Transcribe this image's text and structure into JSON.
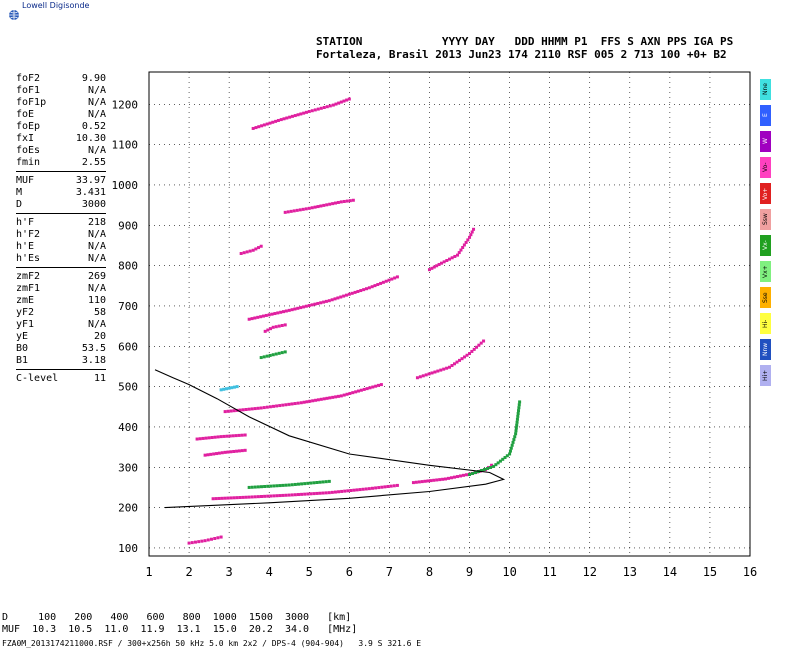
{
  "app": {
    "logo_text": "Lowell Digisonde"
  },
  "header": {
    "line1": "STATION            YYYY DAY   DDD HHMM P1  FFS S AXN PPS IGA PS",
    "line2": "Fortaleza, Brasil 2013 Jun23 174 2110 RSF 005 2 713 100 +0+ B2"
  },
  "params": [
    {
      "k": "foF2",
      "v": "9.90"
    },
    {
      "k": "foF1",
      "v": "N/A"
    },
    {
      "k": "foF1p",
      "v": "N/A"
    },
    {
      "k": "foE",
      "v": "N/A"
    },
    {
      "k": "foEp",
      "v": "0.52"
    },
    {
      "k": "fxI",
      "v": "10.30"
    },
    {
      "k": "foEs",
      "v": "N/A"
    },
    {
      "k": "fmin",
      "v": "2.55"
    },
    {
      "sep": true
    },
    {
      "k": "MUF",
      "v": "33.97"
    },
    {
      "k": "M",
      "v": "3.431"
    },
    {
      "k": "D",
      "v": "3000"
    },
    {
      "sep": true
    },
    {
      "k": "h'F",
      "v": "218"
    },
    {
      "k": "h'F2",
      "v": "N/A"
    },
    {
      "k": "h'E",
      "v": "N/A"
    },
    {
      "k": "h'Es",
      "v": "N/A"
    },
    {
      "sep": true
    },
    {
      "k": "zmF2",
      "v": "269"
    },
    {
      "k": "zmF1",
      "v": "N/A"
    },
    {
      "k": "zmE",
      "v": "110"
    },
    {
      "k": "yF2",
      "v": "58"
    },
    {
      "k": "yF1",
      "v": "N/A"
    },
    {
      "k": "yE",
      "v": "20"
    },
    {
      "k": "B0",
      "v": "53.5"
    },
    {
      "k": "B1",
      "v": "3.18"
    },
    {
      "sep": true
    },
    {
      "k": "C-level",
      "v": "11"
    }
  ],
  "sidebar": [
    {
      "label": "Nne",
      "color": "#40e0e0"
    },
    {
      "label": "E",
      "color": "#3060ff"
    },
    {
      "label": "W",
      "color": "#a000c0"
    },
    {
      "label": "Vo-",
      "color": "#ff40c0"
    },
    {
      "label": "Vo+",
      "color": "#e02020"
    },
    {
      "label": "Ssw",
      "color": "#f0a0a0"
    },
    {
      "label": "Vx-",
      "color": "#20a020"
    },
    {
      "label": "Vx+",
      "color": "#80f080"
    },
    {
      "label": "Sse",
      "color": "#ffb000"
    },
    {
      "label": "Hi-",
      "color": "#ffff40"
    },
    {
      "label": "Nnw",
      "color": "#2050c0"
    },
    {
      "label": "Hi+",
      "color": "#b0b0f0"
    }
  ],
  "footer": {
    "line1": "D     100   200   400   600   800  1000  1500  3000   [km]",
    "line2": "MUF  10.3  10.5  11.0  11.9  13.1  15.0  20.2  34.0   [MHz]",
    "line3": "FZA0M_2013174211000.RSF / 300+x256h 50 kHz 5.0 km 2x2 / DPS-4 (904-904)   3.9 S 321.6 E"
  },
  "chart_data": {
    "type": "scatter",
    "xlim": [
      1,
      16
    ],
    "ylim": [
      80,
      1280
    ],
    "xticks": [
      1,
      2,
      3,
      4,
      5,
      6,
      7,
      8,
      9,
      10,
      11,
      12,
      13,
      14,
      15,
      16
    ],
    "yticks": [
      100,
      200,
      300,
      400,
      500,
      600,
      700,
      800,
      900,
      1000,
      1100,
      1200
    ],
    "grid": true,
    "traces": [
      {
        "color": "#e020a0",
        "points": [
          [
            2.6,
            222
          ],
          [
            3.5,
            226
          ],
          [
            4.5,
            231
          ],
          [
            5.5,
            237
          ],
          [
            6.5,
            247
          ],
          [
            7.2,
            255
          ]
        ]
      },
      {
        "color": "#e020a0",
        "points": [
          [
            7.6,
            262
          ],
          [
            8.4,
            271
          ],
          [
            9.0,
            283
          ],
          [
            9.4,
            294
          ],
          [
            9.55,
            305
          ]
        ]
      },
      {
        "color": "#e020a0",
        "points": [
          [
            2.9,
            438
          ],
          [
            3.8,
            447
          ],
          [
            4.8,
            460
          ],
          [
            5.8,
            477
          ],
          [
            6.8,
            505
          ]
        ]
      },
      {
        "color": "#e020a0",
        "points": [
          [
            7.7,
            522
          ],
          [
            8.5,
            548
          ],
          [
            9.0,
            582
          ],
          [
            9.35,
            613
          ]
        ]
      },
      {
        "color": "#e020a0",
        "points": [
          [
            3.5,
            667
          ],
          [
            4.5,
            689
          ],
          [
            5.5,
            713
          ],
          [
            6.5,
            745
          ],
          [
            7.2,
            772
          ]
        ]
      },
      {
        "color": "#e020a0",
        "points": [
          [
            3.6,
            1140
          ],
          [
            4.3,
            1162
          ],
          [
            5.0,
            1182
          ],
          [
            5.6,
            1198
          ],
          [
            6.0,
            1213
          ]
        ]
      },
      {
        "color": "#e020a0",
        "points": [
          [
            4.4,
            932
          ],
          [
            5.0,
            942
          ],
          [
            5.8,
            958
          ],
          [
            6.1,
            962
          ]
        ]
      },
      {
        "color": "#20a040",
        "points": [
          [
            9.0,
            282
          ],
          [
            9.6,
            302
          ],
          [
            10.0,
            333
          ],
          [
            10.15,
            383
          ],
          [
            10.25,
            462
          ]
        ]
      },
      {
        "color": "#20a040",
        "points": [
          [
            3.5,
            250
          ],
          [
            4.5,
            256
          ],
          [
            5.5,
            265
          ]
        ]
      },
      {
        "color": "#e020a0",
        "points": [
          [
            8.0,
            790
          ],
          [
            8.3,
            806
          ],
          [
            8.7,
            826
          ],
          [
            9.0,
            870
          ],
          [
            9.1,
            890
          ]
        ]
      },
      {
        "color": "#e020a0",
        "points": [
          [
            3.3,
            830
          ],
          [
            3.6,
            838
          ],
          [
            3.8,
            848
          ]
        ]
      },
      {
        "color": "#20a040",
        "points": [
          [
            3.8,
            572
          ],
          [
            4.1,
            579
          ],
          [
            4.4,
            586
          ]
        ]
      },
      {
        "color": "#e020a0",
        "points": [
          [
            3.9,
            637
          ],
          [
            4.1,
            647
          ],
          [
            4.4,
            653
          ]
        ]
      },
      {
        "color": "#40c0e0",
        "points": [
          [
            2.8,
            492
          ],
          [
            3.0,
            496
          ],
          [
            3.2,
            500
          ]
        ]
      },
      {
        "color": "#e020a0",
        "points": [
          [
            2.0,
            112
          ],
          [
            2.4,
            118
          ],
          [
            2.8,
            127
          ]
        ]
      },
      {
        "color": "#e020a0",
        "points": [
          [
            2.4,
            330
          ],
          [
            2.9,
            337
          ],
          [
            3.4,
            342
          ]
        ]
      },
      {
        "color": "#e020a0",
        "points": [
          [
            2.2,
            370
          ],
          [
            2.8,
            376
          ],
          [
            3.4,
            380
          ]
        ]
      }
    ],
    "profile": [
      [
        1.4,
        200
      ],
      [
        2.5,
        205
      ],
      [
        4,
        212
      ],
      [
        6,
        223
      ],
      [
        8,
        240
      ],
      [
        9.4,
        258
      ],
      [
        9.85,
        270
      ],
      [
        9.5,
        287
      ],
      [
        8,
        305
      ],
      [
        6,
        333
      ],
      [
        4.5,
        378
      ],
      [
        3.5,
        425
      ],
      [
        2.7,
        470
      ],
      [
        2,
        505
      ],
      [
        1.6,
        522
      ],
      [
        1.15,
        542
      ]
    ]
  }
}
